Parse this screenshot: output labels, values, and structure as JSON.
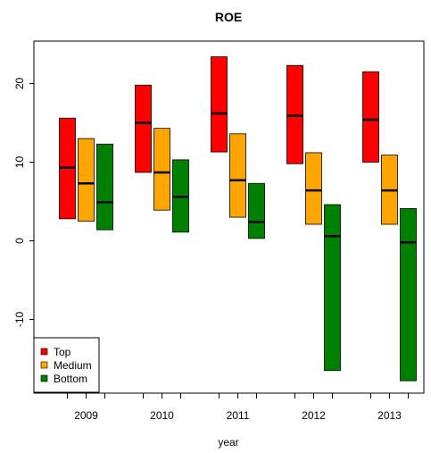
{
  "chart_data": {
    "type": "box",
    "title": "ROE",
    "xlabel": "year",
    "ylabel": "",
    "ylim": [
      -19.5,
      25
    ],
    "yticks": [
      -10,
      0,
      10,
      20
    ],
    "ytick_labels": [
      "-10",
      "0",
      "10",
      "20"
    ],
    "categories": [
      "2009",
      "2010",
      "2011",
      "2012",
      "2013"
    ],
    "series": [
      {
        "name": "Top",
        "color": "#ff0000",
        "boxes": [
          {
            "low": 2.8,
            "high": 15.6,
            "median": 9.3
          },
          {
            "low": 8.7,
            "high": 19.8,
            "median": 15.0
          },
          {
            "low": 11.3,
            "high": 23.4,
            "median": 16.2
          },
          {
            "low": 9.8,
            "high": 22.3,
            "median": 15.9
          },
          {
            "low": 10.0,
            "high": 21.5,
            "median": 15.4
          }
        ]
      },
      {
        "name": "Medium",
        "color": "#ffa500",
        "boxes": [
          {
            "low": 2.5,
            "high": 13.0,
            "median": 7.3
          },
          {
            "low": 3.9,
            "high": 14.3,
            "median": 8.7
          },
          {
            "low": 3.0,
            "high": 13.6,
            "median": 7.7
          },
          {
            "low": 2.1,
            "high": 11.2,
            "median": 6.4
          },
          {
            "low": 2.1,
            "high": 10.9,
            "median": 6.4
          }
        ]
      },
      {
        "name": "Bottom",
        "color": "#008000",
        "boxes": [
          {
            "low": 1.4,
            "high": 12.3,
            "median": 4.9
          },
          {
            "low": 1.1,
            "high": 10.3,
            "median": 5.6
          },
          {
            "low": 0.3,
            "high": 7.3,
            "median": 2.4
          },
          {
            "low": -16.5,
            "high": 4.6,
            "median": 0.6
          },
          {
            "low": -17.8,
            "high": 4.1,
            "median": -0.2
          }
        ]
      }
    ],
    "legend": {
      "position": "bottom-left",
      "entries": [
        "Top",
        "Medium",
        "Bottom"
      ]
    },
    "grid": false
  }
}
